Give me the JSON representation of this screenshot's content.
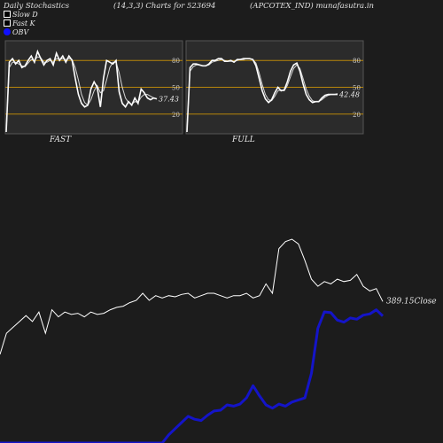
{
  "header": {
    "title": "Daily Stochastics",
    "params": "(14,3,3) Charts for 523694",
    "ticker": "(APCOTEX_IND) munafasutra.in"
  },
  "legend": {
    "slow_d": "Slow  D",
    "fast_k": "Fast K",
    "obv": "OBV"
  },
  "colors": {
    "background": "#1c1c1c",
    "price": "#ffffff",
    "obv": "#1414c8",
    "band": "#b8860b"
  },
  "chart_data": [
    {
      "type": "line",
      "title": "FAST",
      "y_ticks": [
        80,
        50,
        20
      ],
      "ylim": [
        0,
        100
      ],
      "bands": [
        80,
        50,
        20
      ],
      "last_value_label": "37.43",
      "series": [
        {
          "values": [
            0,
            78,
            82,
            76,
            80,
            72,
            74,
            80,
            85,
            78,
            90,
            82,
            75,
            80,
            82,
            75,
            88,
            80,
            85,
            78,
            85,
            80,
            60,
            42,
            32,
            28,
            30,
            48,
            56,
            50,
            28,
            60,
            80,
            78,
            76,
            80,
            45,
            32,
            28,
            34,
            30,
            38,
            32,
            48,
            44,
            38,
            36,
            38,
            37
          ]
        },
        {
          "values": [
            0,
            72,
            78,
            78,
            76,
            74,
            73,
            77,
            81,
            80,
            84,
            83,
            78,
            78,
            80,
            78,
            82,
            81,
            82,
            81,
            82,
            81,
            72,
            58,
            42,
            33,
            30,
            36,
            46,
            52,
            44,
            46,
            58,
            72,
            78,
            78,
            66,
            50,
            38,
            33,
            31,
            34,
            33,
            39,
            42,
            42,
            40,
            38,
            37
          ]
        }
      ]
    },
    {
      "type": "line",
      "title": "FULL",
      "y_ticks": [
        80,
        50,
        20
      ],
      "ylim": [
        0,
        100
      ],
      "bands": [
        80,
        50,
        20
      ],
      "last_value_label": "42.48",
      "series": [
        {
          "values": [
            0,
            72,
            76,
            76,
            75,
            74,
            74,
            76,
            80,
            80,
            82,
            82,
            79,
            79,
            80,
            78,
            81,
            81,
            82,
            82,
            82,
            81,
            74,
            60,
            46,
            37,
            33,
            36,
            44,
            50,
            46,
            47,
            56,
            68,
            75,
            77,
            68,
            54,
            42,
            36,
            33,
            34,
            34,
            38,
            41,
            42,
            42,
            42,
            42
          ]
        },
        {
          "values": [
            0,
            68,
            73,
            75,
            75,
            74,
            74,
            75,
            78,
            79,
            80,
            81,
            80,
            79,
            79,
            79,
            80,
            81,
            81,
            82,
            82,
            81,
            77,
            66,
            53,
            42,
            36,
            35,
            40,
            46,
            47,
            46,
            52,
            62,
            71,
            75,
            71,
            60,
            48,
            40,
            35,
            34,
            34,
            36,
            39,
            41,
            42,
            42,
            43
          ]
        }
      ]
    },
    {
      "type": "line",
      "last_value_label": "389.15",
      "last_value_suffix": "Close",
      "series": [
        {
          "name": "Close",
          "values": [
            340,
            358,
            363,
            368,
            373,
            368,
            376,
            358,
            378,
            372,
            376,
            374,
            375,
            372,
            376,
            374,
            375,
            378,
            380,
            381,
            384,
            386,
            392,
            386,
            390,
            388,
            390,
            389,
            391,
            392,
            388,
            390,
            392,
            392,
            390,
            388,
            390,
            390,
            392,
            388,
            390,
            400,
            392,
            430,
            436,
            438,
            434,
            420,
            404,
            398,
            402,
            400,
            404,
            402,
            403,
            408,
            398,
            394,
            396,
            385
          ]
        },
        {
          "name": "OBV",
          "values": [
            -340,
            -340,
            -340,
            -340,
            -340,
            -340,
            -340,
            -340,
            -340,
            -340,
            -340,
            -340,
            -340,
            -340,
            -340,
            -340,
            -340,
            -340,
            -340,
            -340,
            -340,
            -340,
            -340,
            -340,
            -340,
            -340,
            -320,
            -305,
            -290,
            -275,
            -282,
            -285,
            -272,
            -262,
            -260,
            -247,
            -250,
            -245,
            -230,
            -200,
            -225,
            -247,
            -255,
            -245,
            -250,
            -240,
            -235,
            -230,
            -170,
            -60,
            -20,
            -22,
            -40,
            -45,
            -35,
            -38,
            -28,
            -25,
            -15,
            -30
          ]
        }
      ]
    }
  ]
}
